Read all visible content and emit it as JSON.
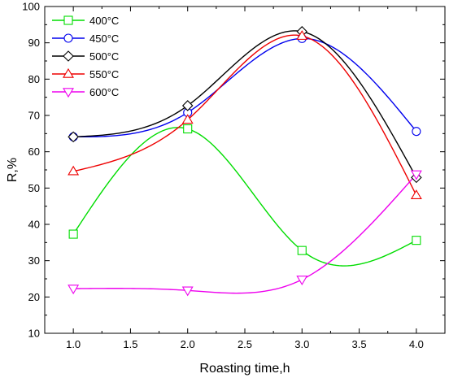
{
  "chart_data": {
    "type": "line",
    "xlabel": "Roasting time,h",
    "ylabel": "R,%",
    "xlim": [
      0.75,
      4.25
    ],
    "ylim": [
      10,
      100
    ],
    "xticks": [
      "1.0",
      "1.5",
      "2.0",
      "2.5",
      "3.0",
      "3.5",
      "4.0"
    ],
    "yticks": [
      "10",
      "20",
      "30",
      "40",
      "50",
      "60",
      "70",
      "80",
      "90",
      "100"
    ],
    "legend_position": "top-left",
    "grid": false,
    "smoothed": true,
    "series": [
      {
        "name": "400°C",
        "color": "#00dd00",
        "marker": "square",
        "x": [
          1.0,
          2.0,
          3.0,
          4.0
        ],
        "y": [
          37.3,
          66.3,
          32.8,
          35.6
        ]
      },
      {
        "name": "450°C",
        "color": "#0000ee",
        "marker": "circle",
        "x": [
          1.0,
          2.0,
          3.0,
          4.0
        ],
        "y": [
          64.1,
          70.8,
          91.2,
          65.6
        ]
      },
      {
        "name": "500°C",
        "color": "#000000",
        "marker": "diamond",
        "x": [
          1.0,
          2.0,
          3.0,
          4.0
        ],
        "y": [
          64.1,
          72.7,
          93.1,
          52.9
        ]
      },
      {
        "name": "550°C",
        "color": "#ee0000",
        "marker": "triangle-up",
        "x": [
          1.0,
          2.0,
          3.0,
          4.0
        ],
        "y": [
          54.6,
          68.8,
          91.9,
          48.0
        ]
      },
      {
        "name": "600°C",
        "color": "#ee00ee",
        "marker": "triangle-down",
        "x": [
          1.0,
          2.0,
          3.0,
          4.0
        ],
        "y": [
          22.3,
          21.8,
          24.8,
          53.8
        ]
      }
    ]
  }
}
